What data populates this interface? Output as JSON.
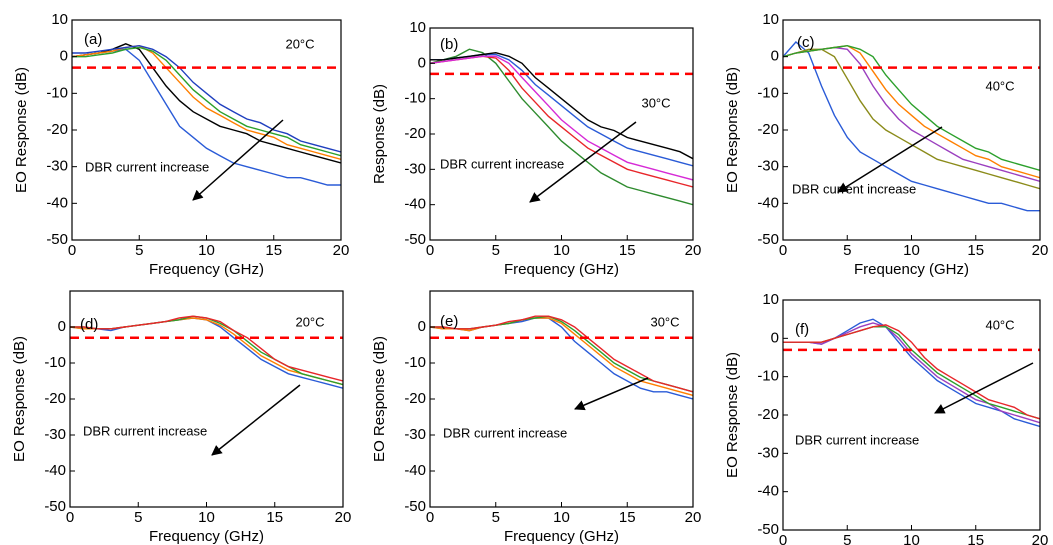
{
  "chart_data": [
    {
      "type": "line",
      "panel_label": "(a)",
      "temperature_label": "20°C",
      "annotation": "DBR current increase",
      "xlabel": "Frequency (GHz)",
      "ylabel": "EO Response (dB)",
      "x": [
        0,
        1,
        2,
        3,
        4,
        5,
        6,
        7,
        8,
        9,
        10,
        11,
        12,
        13,
        14,
        15,
        16,
        17,
        18,
        19,
        20
      ],
      "xlim": [
        0,
        20
      ],
      "ylim": [
        -50,
        10
      ],
      "xticks": [
        0,
        5,
        10,
        15,
        20
      ],
      "yticks": [
        -50,
        -40,
        -30,
        -20,
        -10,
        0,
        10
      ],
      "reference_line": {
        "value": -3,
        "color": "#ff0000"
      },
      "series": [
        {
          "color": "#2a5bd7",
          "values": [
            0,
            0.5,
            1,
            1.5,
            2,
            -1,
            -7,
            -13,
            -19,
            -22,
            -25,
            -27,
            -29,
            -30,
            -31,
            -32,
            -33,
            -33,
            -34,
            -35,
            -35
          ]
        },
        {
          "color": "#000000",
          "values": [
            0,
            0.5,
            1,
            2,
            3.5,
            2,
            -3,
            -8,
            -12,
            -15,
            -17,
            -19,
            -20,
            -21,
            -23,
            -24,
            -25,
            -26,
            -27,
            -28,
            -29
          ]
        },
        {
          "color": "#ff7f00",
          "values": [
            0,
            0.5,
            1,
            1.5,
            2.5,
            3,
            1,
            -3,
            -7,
            -11,
            -14,
            -16,
            -18,
            -20,
            -21,
            -22,
            -24,
            -25,
            -26,
            -27,
            -28
          ]
        },
        {
          "color": "#2ca02c",
          "values": [
            0,
            0,
            0.5,
            1,
            2,
            2.5,
            1.5,
            -1,
            -5,
            -9,
            -12,
            -15,
            -17,
            -19,
            -20,
            -21,
            -22,
            -24,
            -25,
            -26,
            -27
          ]
        },
        {
          "color": "#1f3fbf",
          "values": [
            1,
            1,
            1.5,
            2,
            2.5,
            3,
            2,
            0,
            -3,
            -7,
            -10,
            -13,
            -15,
            -17,
            -18,
            -20,
            -21,
            -23,
            -24,
            -25,
            -26
          ]
        }
      ]
    },
    {
      "type": "line",
      "panel_label": "(b)",
      "temperature_label": "30°C",
      "annotation": "DBR current increase",
      "xlabel": "Frequency (GHz)",
      "ylabel": "Response (dB)",
      "x": [
        0,
        1,
        2,
        3,
        4,
        5,
        6,
        7,
        8,
        9,
        10,
        11,
        12,
        13,
        14,
        15,
        16,
        17,
        18,
        19,
        20
      ],
      "xlim": [
        0,
        20
      ],
      "ylim": [
        -50,
        10
      ],
      "xticks": [
        0,
        5,
        10,
        15,
        20
      ],
      "yticks": [
        -50,
        -40,
        -30,
        -20,
        -10,
        0,
        10
      ],
      "reference_line": {
        "value": -3,
        "color": "#ff0000"
      },
      "series": [
        {
          "color": "#2e8b2e",
          "values": [
            0,
            1,
            2,
            4,
            3,
            0,
            -5,
            -10,
            -14,
            -18,
            -22,
            -25,
            -28,
            -31,
            -33,
            -35,
            -36,
            -37,
            -38,
            -39,
            -40
          ]
        },
        {
          "color": "#e8262a",
          "values": [
            0,
            0.5,
            1,
            1.5,
            2,
            1.5,
            -2,
            -7,
            -11,
            -15,
            -18,
            -21,
            -24,
            -26,
            -28,
            -30,
            -31,
            -32,
            -33,
            -34,
            -35
          ]
        },
        {
          "color": "#d62ad6",
          "values": [
            0,
            0.5,
            1,
            1.5,
            2,
            2,
            0,
            -4,
            -8,
            -12,
            -16,
            -19,
            -22,
            -24,
            -26,
            -28,
            -29,
            -30,
            -31,
            -32,
            -33
          ]
        },
        {
          "color": "#2a5bd7",
          "values": [
            1,
            1,
            1.5,
            2,
            2.5,
            2.5,
            1,
            -2,
            -6,
            -9,
            -12,
            -15,
            -18,
            -20,
            -22,
            -24,
            -25,
            -26,
            -27,
            -28,
            -29
          ]
        },
        {
          "color": "#000000",
          "values": [
            1,
            1,
            1.5,
            2,
            2.5,
            3,
            2,
            0,
            -4,
            -7,
            -10,
            -13,
            -16,
            -18,
            -19,
            -21,
            -22,
            -23,
            -24,
            -25,
            -27
          ]
        }
      ]
    },
    {
      "type": "line",
      "panel_label": "(c)",
      "temperature_label": "40°C",
      "annotation": "DBR current increase",
      "xlabel": "Frequency (GHz)",
      "ylabel": "EO Response (dB)",
      "x": [
        0,
        1,
        2,
        3,
        4,
        5,
        6,
        7,
        8,
        9,
        10,
        11,
        12,
        13,
        14,
        15,
        16,
        17,
        18,
        19,
        20
      ],
      "xlim": [
        0,
        20
      ],
      "ylim": [
        -50,
        10
      ],
      "xticks": [
        0,
        5,
        10,
        15,
        20
      ],
      "yticks": [
        -50,
        -40,
        -30,
        -20,
        -10,
        0,
        10
      ],
      "reference_line": {
        "value": -3,
        "color": "#ff0000"
      },
      "series": [
        {
          "color": "#2a5bd7",
          "values": [
            0,
            4,
            1,
            -8,
            -16,
            -22,
            -26,
            -28,
            -30,
            -32,
            -34,
            -35,
            -36,
            -37,
            -38,
            -39,
            -40,
            -40,
            -41,
            -42,
            -42
          ]
        },
        {
          "color": "#8b8b1a",
          "values": [
            0,
            1,
            2,
            2,
            0,
            -6,
            -12,
            -17,
            -20,
            -22,
            -24,
            -26,
            -28,
            -29,
            -30,
            -31,
            -32,
            -33,
            -34,
            -35,
            -36
          ]
        },
        {
          "color": "#9b3fbf",
          "values": [
            0,
            1,
            1.5,
            2,
            2.5,
            2,
            -2,
            -8,
            -13,
            -17,
            -20,
            -22,
            -24,
            -26,
            -28,
            -29,
            -30,
            -31,
            -32,
            -33,
            -34
          ]
        },
        {
          "color": "#ff7f00",
          "values": [
            0,
            1,
            1.5,
            2,
            2.5,
            3,
            1,
            -4,
            -9,
            -13,
            -16,
            -19,
            -21,
            -23,
            -25,
            -27,
            -28,
            -30,
            -31,
            -32,
            -33
          ]
        },
        {
          "color": "#2ca02c",
          "values": [
            0,
            1,
            1.5,
            2,
            2.5,
            3,
            2,
            0,
            -5,
            -9,
            -13,
            -16,
            -19,
            -21,
            -23,
            -25,
            -26,
            -28,
            -29,
            -30,
            -31
          ]
        }
      ]
    },
    {
      "type": "line",
      "panel_label": "(d)",
      "temperature_label": "20°C",
      "annotation": "DBR current increase",
      "xlabel": "Frequency (GHz)",
      "ylabel": "EO Response (dB)",
      "x": [
        0,
        1,
        2,
        3,
        4,
        5,
        6,
        7,
        8,
        9,
        10,
        11,
        12,
        13,
        14,
        15,
        16,
        17,
        18,
        19,
        20
      ],
      "xlim": [
        0,
        20
      ],
      "ylim": [
        -50,
        10
      ],
      "xticks": [
        0,
        5,
        10,
        15,
        20
      ],
      "yticks": [
        -50,
        -40,
        -30,
        -20,
        -10,
        0
      ],
      "reference_line": {
        "value": -3,
        "color": "#ff0000"
      },
      "series": [
        {
          "color": "#2a5bd7",
          "values": [
            0,
            -0.5,
            -0.5,
            -1,
            0,
            0.5,
            1,
            1.5,
            2,
            2.5,
            2,
            0,
            -3,
            -6,
            -9,
            -11,
            -13,
            -14,
            -15,
            -16,
            -17
          ]
        },
        {
          "color": "#ff7f00",
          "values": [
            0,
            -0.5,
            -0.5,
            -0.5,
            0,
            0.5,
            1,
            1.5,
            2,
            2.5,
            2,
            0.5,
            -2,
            -5,
            -8,
            -10,
            -12,
            -13,
            -14,
            -15,
            -16
          ]
        },
        {
          "color": "#2ca02c",
          "values": [
            0,
            0,
            -0.5,
            -0.5,
            0,
            0.5,
            1,
            1.5,
            2,
            3,
            2.5,
            1,
            -1,
            -4,
            -7,
            -9,
            -11,
            -13,
            -14,
            -15,
            -16
          ]
        },
        {
          "color": "#e8262a",
          "values": [
            0,
            0,
            -0.5,
            -0.5,
            0,
            0.5,
            1,
            1.5,
            2.5,
            3,
            2.5,
            1.5,
            -1,
            -3,
            -6,
            -9,
            -11,
            -12,
            -13,
            -14,
            -15
          ]
        }
      ]
    },
    {
      "type": "line",
      "panel_label": "(e)",
      "temperature_label": "30°C",
      "annotation": "DBR current increase",
      "xlabel": "Frequency (GHz)",
      "ylabel": "EO Response (dB)",
      "x": [
        0,
        1,
        2,
        3,
        4,
        5,
        6,
        7,
        8,
        9,
        10,
        11,
        12,
        13,
        14,
        15,
        16,
        17,
        18,
        19,
        20
      ],
      "xlim": [
        0,
        20
      ],
      "ylim": [
        -50,
        10
      ],
      "xticks": [
        0,
        5,
        10,
        15,
        20
      ],
      "yticks": [
        -50,
        -40,
        -30,
        -20,
        -10,
        0
      ],
      "reference_line": {
        "value": -3,
        "color": "#ff0000"
      },
      "series": [
        {
          "color": "#2a5bd7",
          "values": [
            0,
            -0.5,
            -0.5,
            -1,
            0,
            0.5,
            1,
            1.5,
            2.5,
            2.5,
            0,
            -4,
            -7,
            -10,
            -13,
            -15,
            -17,
            -18,
            -18,
            -19,
            -20
          ]
        },
        {
          "color": "#ff7f00",
          "values": [
            0,
            -0.5,
            -0.5,
            -1,
            0,
            0.5,
            1,
            2,
            2.5,
            2.5,
            1,
            -2,
            -5,
            -8,
            -11,
            -13,
            -15,
            -16,
            -17,
            -18,
            -19
          ]
        },
        {
          "color": "#2ca02c",
          "values": [
            0,
            0,
            -0.5,
            -0.5,
            0,
            0.5,
            1,
            2,
            2.5,
            3,
            1.5,
            -1,
            -4,
            -7,
            -10,
            -12,
            -14,
            -15,
            -16,
            -17,
            -18
          ]
        },
        {
          "color": "#e8262a",
          "values": [
            0,
            0,
            -0.5,
            -0.5,
            0,
            0.5,
            1.5,
            2,
            3,
            3,
            2,
            0,
            -3,
            -6,
            -9,
            -11,
            -13,
            -15,
            -16,
            -17,
            -18
          ]
        }
      ]
    },
    {
      "type": "line",
      "panel_label": "(f)",
      "temperature_label": "40°C",
      "annotation": "DBR current increase",
      "xlabel": "Frequency (GHz)",
      "ylabel": "EO Response (dB)",
      "x": [
        0,
        1,
        2,
        3,
        4,
        5,
        6,
        7,
        8,
        9,
        10,
        11,
        12,
        13,
        14,
        15,
        16,
        17,
        18,
        19,
        20
      ],
      "xlim": [
        0,
        20
      ],
      "ylim": [
        -50,
        10
      ],
      "xticks": [
        0,
        5,
        10,
        15,
        20
      ],
      "yticks": [
        -50,
        -40,
        -30,
        -20,
        -10,
        0,
        10
      ],
      "reference_line": {
        "value": -3,
        "color": "#ff0000"
      },
      "series": [
        {
          "color": "#2a5bd7",
          "values": [
            -1,
            -1,
            -1,
            -1.5,
            0,
            2,
            4,
            5,
            3,
            -1,
            -5,
            -8,
            -11,
            -13,
            -15,
            -17,
            -18,
            -19,
            -21,
            -22,
            -23
          ]
        },
        {
          "color": "#9b3fbf",
          "values": [
            -1,
            -1,
            -1,
            -1.5,
            0,
            1.5,
            3,
            4,
            3,
            0,
            -4,
            -7,
            -10,
            -12,
            -14,
            -16,
            -17,
            -19,
            -20,
            -21,
            -22
          ]
        },
        {
          "color": "#2ca02c",
          "values": [
            -1,
            -1,
            -1,
            -1,
            0,
            1,
            2,
            3,
            3,
            1,
            -3,
            -6,
            -9,
            -11,
            -13,
            -15,
            -17,
            -18,
            -19,
            -20,
            -21
          ]
        },
        {
          "color": "#e8262a",
          "values": [
            -1,
            -1,
            -1,
            -1,
            0,
            1,
            2,
            3,
            3.5,
            2,
            -1,
            -5,
            -8,
            -10,
            -12,
            -14,
            -16,
            -17,
            -18,
            -20,
            -21
          ]
        }
      ]
    }
  ]
}
